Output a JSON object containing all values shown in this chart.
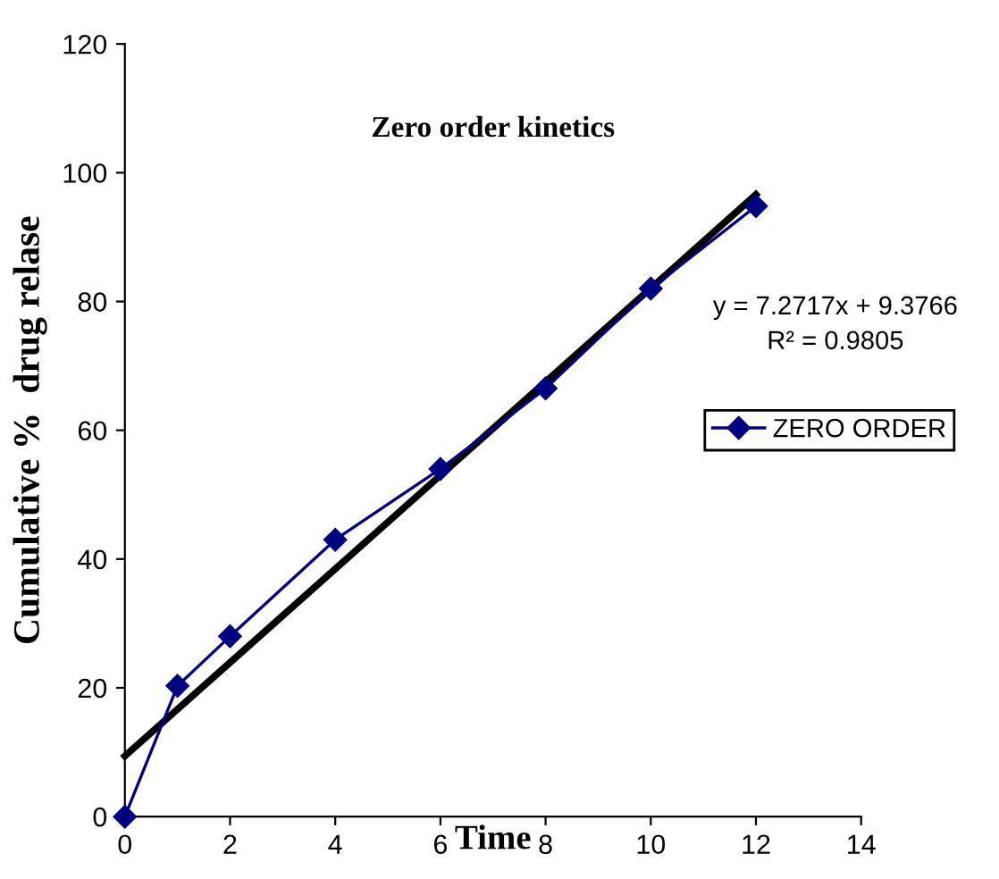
{
  "chart_data": {
    "type": "line",
    "title": "Zero order kinetics",
    "xlabel": "Time",
    "ylabel": "Cumulative %  drug relase",
    "x": [
      0,
      1,
      2,
      4,
      6,
      8,
      10,
      12
    ],
    "series": [
      {
        "name": "ZERO ORDER",
        "color": "#000080",
        "marker": "diamond",
        "values": [
          0,
          20.3,
          28,
          43,
          54,
          66.5,
          82,
          94.8
        ]
      },
      {
        "color": "#000000",
        "marker": "none",
        "x": [
          0,
          12
        ],
        "values": [
          9.4,
          96.6
        ]
      }
    ],
    "annotations": [
      "y = 7.2717x + 9.3766",
      "R² = 0.9805"
    ],
    "xlim": [
      0,
      14
    ],
    "ylim": [
      0,
      120
    ],
    "xticks": [
      0,
      2,
      4,
      6,
      8,
      10,
      12,
      14
    ],
    "yticks": [
      0,
      20,
      40,
      60,
      80,
      100,
      120
    ],
    "grid": false,
    "legend": "right",
    "line_style": "solid"
  }
}
